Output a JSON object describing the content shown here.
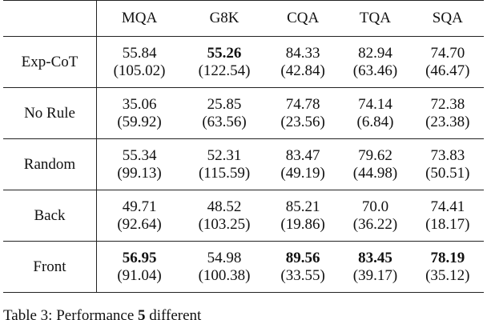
{
  "table": {
    "columns": [
      "MQA",
      "G8K",
      "CQA",
      "TQA",
      "SQA"
    ],
    "rows": [
      {
        "label": "Exp-CoT",
        "cells": [
          {
            "score": "55.84",
            "length": "(105.02)"
          },
          {
            "score": "55.26",
            "length": "(122.54)",
            "bold": true
          },
          {
            "score": "84.33",
            "length": "(42.84)"
          },
          {
            "score": "82.94",
            "length": "(63.46)"
          },
          {
            "score": "74.70",
            "length": "(46.47)"
          }
        ]
      },
      {
        "label": "No Rule",
        "cells": [
          {
            "score": "35.06",
            "length": "(59.92)"
          },
          {
            "score": "25.85",
            "length": "(63.56)"
          },
          {
            "score": "74.78",
            "length": "(23.56)"
          },
          {
            "score": "74.14",
            "length": "(6.84)"
          },
          {
            "score": "72.38",
            "length": "(23.38)"
          }
        ]
      },
      {
        "label": "Random",
        "cells": [
          {
            "score": "55.34",
            "length": "(99.13)"
          },
          {
            "score": "52.31",
            "length": "(115.59)"
          },
          {
            "score": "83.47",
            "length": "(49.19)"
          },
          {
            "score": "79.62",
            "length": "(44.98)"
          },
          {
            "score": "73.83",
            "length": "(50.51)"
          }
        ]
      },
      {
        "label": "Back",
        "cells": [
          {
            "score": "49.71",
            "length": "(92.64)"
          },
          {
            "score": "48.52",
            "length": "(103.25)"
          },
          {
            "score": "85.21",
            "length": "(19.86)"
          },
          {
            "score": "70.0",
            "length": "(36.22)"
          },
          {
            "score": "74.41",
            "length": "(18.17)"
          }
        ]
      },
      {
        "label": "Front",
        "cells": [
          {
            "score": "56.95",
            "length": "(91.04)",
            "bold": true
          },
          {
            "score": "54.98",
            "length": "(100.38)"
          },
          {
            "score": "89.56",
            "length": "(33.55)",
            "bold": true
          },
          {
            "score": "83.45",
            "length": "(39.17)",
            "bold": true
          },
          {
            "score": "78.19",
            "length": "(35.12)",
            "bold": true
          }
        ]
      }
    ]
  },
  "caption": {
    "prefix": "Table 3: Performance",
    "bold": "5",
    "rest": "different"
  }
}
